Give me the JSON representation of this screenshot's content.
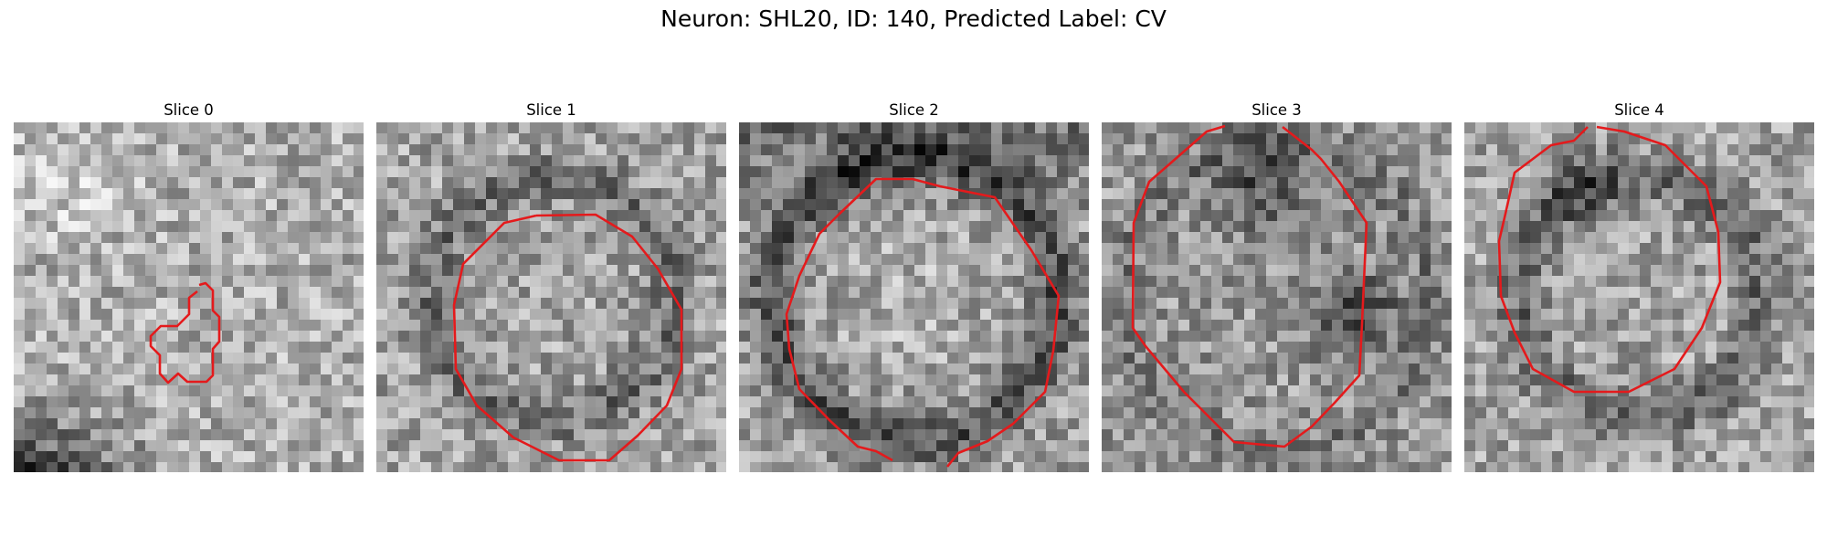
{
  "figure": {
    "title": "Neuron: SHL20, ID: 140, Predicted Label: CV"
  },
  "colors": {
    "contour": "#e41a1c",
    "colormap": "grayscale"
  },
  "panels": [
    {
      "title": "Slice 0",
      "seed": 11,
      "base": "slice0",
      "contour": "small-blob"
    },
    {
      "title": "Slice 1",
      "seed": 23,
      "base": "ring-faint",
      "contour": "octagon"
    },
    {
      "title": "Slice 2",
      "seed": 37,
      "base": "ring-dark",
      "contour": "large-round"
    },
    {
      "title": "Slice 3",
      "seed": 53,
      "base": "dark-patches",
      "contour": "tall-octagon"
    },
    {
      "title": "Slice 4",
      "seed": 71,
      "base": "ring-top",
      "contour": "rounded-octagon"
    }
  ]
}
